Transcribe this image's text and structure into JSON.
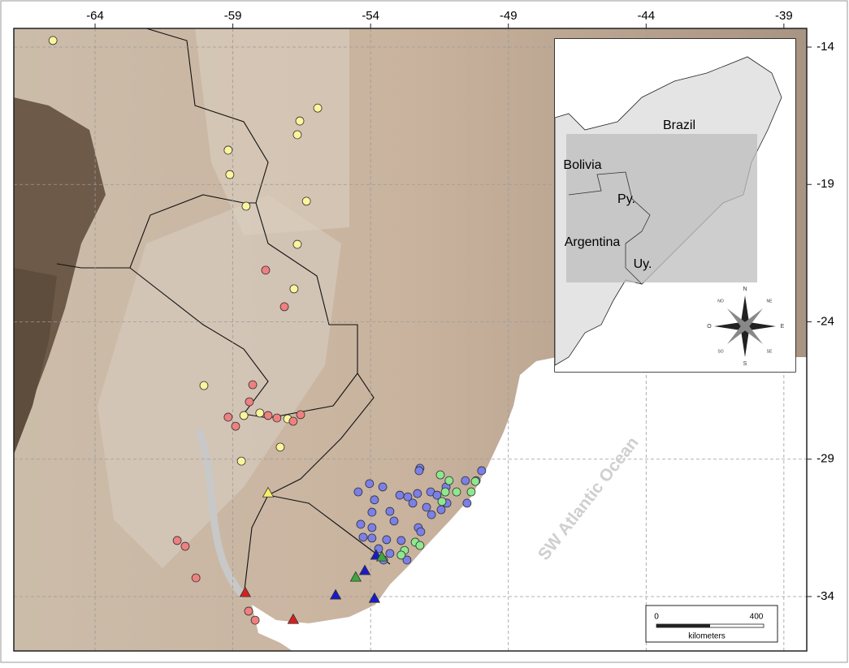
{
  "map": {
    "lon_range": [
      -66.95,
      -38.17
    ],
    "lat_range": [
      -35.98,
      -13.32
    ],
    "lon_ticks": [
      -64,
      -59,
      -54,
      -49,
      -44,
      -39
    ],
    "lat_ticks": [
      -14,
      -19,
      -24,
      -29,
      -34
    ],
    "ocean_label": "SW Atlantic Ocean",
    "inset": {
      "labels": [
        "Brazil",
        "Bolivia",
        "Py.",
        "Argentina",
        "Uy."
      ],
      "compass": [
        "N",
        "S",
        "E",
        "O",
        "NE",
        "NO",
        "SE",
        "SO"
      ]
    },
    "scale_bar": {
      "start": "0",
      "end": "400",
      "unit": "kilometers"
    },
    "groups": [
      {
        "shape": "circle",
        "color": "#fbf59c",
        "lon": [
          -65.53,
          -55.92,
          -56.57,
          -56.66,
          -59.17,
          -59.11,
          -56.33,
          -58.52,
          -56.66,
          -56.78,
          -60.05,
          -58.6,
          -58.02,
          -57.01,
          -57.28,
          -58.69
        ],
        "lat": [
          -13.76,
          -16.22,
          -16.69,
          -17.19,
          -17.75,
          -18.64,
          -19.61,
          -19.79,
          -21.18,
          -22.8,
          -26.32,
          -27.41,
          -27.32,
          -27.53,
          -28.56,
          -29.07
        ]
      },
      {
        "shape": "circle",
        "color": "#f08080",
        "lon": [
          -57.81,
          -57.13,
          -58.28,
          -58.4,
          -59.17,
          -58.9,
          -57.72,
          -57.4,
          -56.81,
          -56.54,
          -61.02,
          -60.73,
          -60.34,
          -58.43,
          -58.19
        ],
        "lat": [
          -22.12,
          -23.45,
          -26.29,
          -26.91,
          -27.47,
          -27.8,
          -27.41,
          -27.5,
          -27.62,
          -27.38,
          -31.96,
          -32.17,
          -33.32,
          -34.53,
          -34.86
        ]
      },
      {
        "shape": "circle",
        "color": "#7b7fe8",
        "lon": [
          -52.21,
          -52.24,
          -49.97,
          -50.56,
          -54.45,
          -54.04,
          -53.56,
          -53.86,
          -52.94,
          -52.65,
          -52.3,
          -51.82,
          -51.26,
          -50.17,
          -51.59,
          -51.23,
          -53.95,
          -53.3,
          -52.47,
          -51.97,
          -51.44,
          -50.5,
          -54.36,
          -53.95,
          -53.15,
          -52.27,
          -51.79,
          -53.95,
          -53.42,
          -52.89,
          -52.18,
          -54.27,
          -53.71,
          -53.3,
          -52.68,
          -53.53
        ],
        "lat": [
          -29.33,
          -29.42,
          -29.42,
          -29.78,
          -30.19,
          -29.89,
          -30.01,
          -30.48,
          -30.31,
          -30.37,
          -30.25,
          -30.19,
          -30.01,
          -29.78,
          -30.31,
          -30.6,
          -30.93,
          -30.9,
          -30.6,
          -30.75,
          -30.84,
          -30.6,
          -31.37,
          -31.49,
          -31.25,
          -31.49,
          -31.02,
          -31.87,
          -31.93,
          -31.96,
          -31.64,
          -31.84,
          -32.26,
          -32.43,
          -32.67,
          -32.67
        ]
      },
      {
        "shape": "circle",
        "color": "#8ee88e",
        "lon": [
          -51.47,
          -51.15,
          -50.2,
          -51.29,
          -50.88,
          -50.35,
          -51.41,
          -52.38,
          -52.77,
          -52.89,
          -52.21
        ],
        "lat": [
          -29.57,
          -29.78,
          -29.81,
          -30.19,
          -30.19,
          -30.19,
          -30.54,
          -32.02,
          -32.32,
          -32.49,
          -32.14
        ]
      },
      {
        "shape": "triangle",
        "color": "#f5ee6a",
        "lon": [
          -57.72
        ],
        "lat": [
          -30.22
        ]
      },
      {
        "shape": "triangle",
        "color": "#d42020",
        "lon": [
          -58.55,
          -56.81
        ],
        "lat": [
          -33.85,
          -34.83
        ]
      },
      {
        "shape": "triangle",
        "color": "#1a1ac8",
        "lon": [
          -53.8,
          -54.21,
          -55.27,
          -53.86
        ],
        "lat": [
          -32.49,
          -33.05,
          -33.94,
          -34.06
        ]
      },
      {
        "shape": "triangle",
        "color": "#3ca83c",
        "lon": [
          -54.54,
          -53.59
        ],
        "lat": [
          -33.29,
          -32.55
        ]
      }
    ]
  }
}
